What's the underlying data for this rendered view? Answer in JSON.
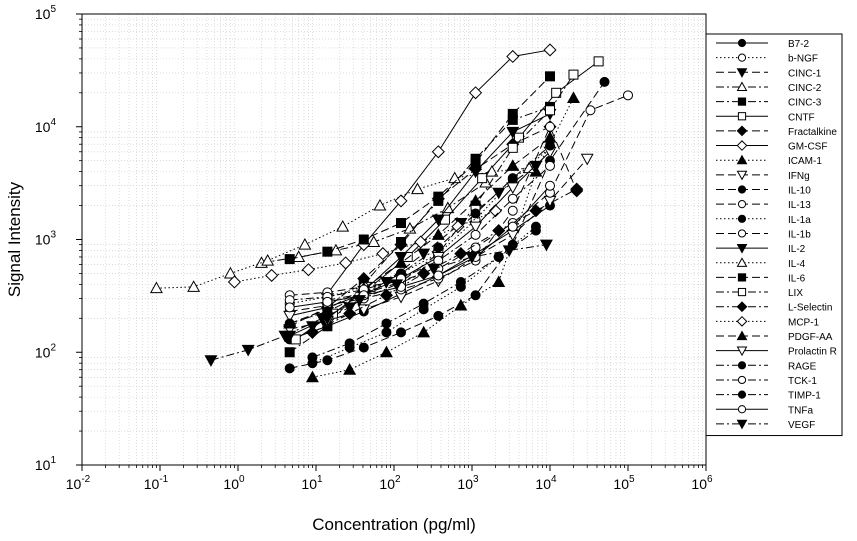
{
  "chart_data": {
    "type": "scatter",
    "title": "",
    "xlabel": "Concentration (pg/ml)",
    "ylabel": "Signal Intensity",
    "x_scale": "log",
    "y_scale": "log",
    "xlim": [
      0.01,
      1000000
    ],
    "ylim": [
      10,
      100000
    ],
    "x_ticks": [
      {
        "base": "10",
        "exp": "-2"
      },
      {
        "base": "10",
        "exp": "-1"
      },
      {
        "base": "10",
        "exp": "0"
      },
      {
        "base": "10",
        "exp": "1"
      },
      {
        "base": "10",
        "exp": "2"
      },
      {
        "base": "10",
        "exp": "3"
      },
      {
        "base": "10",
        "exp": "4"
      },
      {
        "base": "10",
        "exp": "5"
      },
      {
        "base": "10",
        "exp": "6"
      }
    ],
    "y_ticks": [
      {
        "base": "10",
        "exp": "1"
      },
      {
        "base": "10",
        "exp": "2"
      },
      {
        "base": "10",
        "exp": "3"
      },
      {
        "base": "10",
        "exp": "4"
      },
      {
        "base": "10",
        "exp": "5"
      }
    ],
    "grid": true,
    "legend_position": "right",
    "series": [
      {
        "name": "B7-2",
        "marker": "circle",
        "fill": "black",
        "dash": "solid",
        "x": [
          4.6,
          14,
          41,
          123,
          370,
          1111,
          3333,
          10000
        ],
        "y": [
          130,
          170,
          230,
          330,
          480,
          750,
          1200,
          2000
        ]
      },
      {
        "name": "b-NGF",
        "marker": "circle",
        "fill": "white",
        "dash": "dot",
        "x": [
          4.6,
          14,
          41,
          123,
          370,
          1111,
          3333,
          10000
        ],
        "y": [
          270,
          310,
          380,
          500,
          750,
          1500,
          3400,
          6500
        ]
      },
      {
        "name": "CINC-1",
        "marker": "triangle-down",
        "fill": "black",
        "dash": "longdash",
        "x": [
          9,
          27,
          80,
          240,
          720,
          2200,
          6600
        ],
        "y": [
          170,
          250,
          420,
          750,
          1400,
          2600,
          4500
        ]
      },
      {
        "name": "CINC-2",
        "marker": "triangle-up",
        "fill": "white",
        "dash": "dashdot",
        "x": [
          2,
          6,
          18,
          55,
          160,
          490,
          1500
        ],
        "y": [
          620,
          700,
          800,
          950,
          1250,
          1900,
          3200
        ]
      },
      {
        "name": "CINC-3",
        "marker": "square",
        "fill": "black",
        "dash": "dashdot",
        "x": [
          4.6,
          14,
          41,
          123,
          370,
          1111,
          3333,
          10000
        ],
        "y": [
          100,
          170,
          400,
          950,
          2200,
          5200,
          11500,
          15000
        ]
      },
      {
        "name": "CNTF",
        "marker": "square",
        "fill": "white",
        "dash": "solid",
        "x": [
          5.5,
          16.5,
          50,
          150,
          450,
          1350,
          4000,
          12000,
          42000
        ],
        "y": [
          130,
          220,
          380,
          700,
          1500,
          3500,
          8000,
          20000,
          38000
        ]
      },
      {
        "name": "Fractalkine",
        "marker": "diamond",
        "fill": "black",
        "dash": "longdash",
        "x": [
          4.6,
          14,
          41,
          123,
          370,
          1111,
          3333,
          10000,
          22000
        ],
        "y": [
          170,
          250,
          450,
          900,
          2300,
          4200,
          7000,
          10000,
          2700
        ]
      },
      {
        "name": "GM-CSF",
        "marker": "diamond",
        "fill": "white",
        "dash": "solid",
        "x": [
          14,
          41,
          123,
          370,
          1111,
          3333,
          10000
        ],
        "y": [
          330,
          900,
          2200,
          6000,
          20000,
          42000,
          48000
        ]
      },
      {
        "name": "ICAM-1",
        "marker": "triangle-up",
        "fill": "black",
        "dash": "dot",
        "x": [
          9,
          27,
          80,
          240,
          720,
          2200,
          6600,
          20000
        ],
        "y": [
          60,
          70,
          100,
          150,
          260,
          420,
          4000,
          18000
        ]
      },
      {
        "name": "IFNg",
        "marker": "triangle-down",
        "fill": "white",
        "dash": "longdash",
        "x": [
          4.6,
          14,
          41,
          123,
          370,
          1111,
          3333,
          10000,
          30000
        ],
        "y": [
          160,
          190,
          240,
          310,
          430,
          700,
          1100,
          2200,
          5200
        ]
      },
      {
        "name": "IL-10",
        "marker": "circle",
        "fill": "black",
        "dash": "longdash",
        "x": [
          4.6,
          14,
          41,
          123,
          370,
          1111,
          3333,
          10000,
          50000
        ],
        "y": [
          72,
          85,
          110,
          150,
          210,
          320,
          900,
          5000,
          25000
        ]
      },
      {
        "name": "IL-13",
        "marker": "circle",
        "fill": "white",
        "dash": "longdash",
        "x": [
          4.6,
          14,
          41,
          123,
          370,
          1111,
          3333,
          10000,
          33000,
          100000
        ],
        "y": [
          320,
          340,
          380,
          430,
          550,
          850,
          1400,
          2600,
          14000,
          19000
        ]
      },
      {
        "name": "IL-1a",
        "marker": "circle",
        "fill": "black",
        "dash": "dot",
        "x": [
          9,
          27,
          80,
          240,
          720,
          2200,
          6600
        ],
        "y": [
          80,
          110,
          150,
          240,
          380,
          700,
          1300
        ]
      },
      {
        "name": "IL-1b",
        "marker": "circle",
        "fill": "white",
        "dash": "longdash",
        "x": [
          4.6,
          14,
          41,
          123,
          370,
          1111,
          3333,
          10000
        ],
        "y": [
          230,
          260,
          300,
          360,
          450,
          650,
          1800,
          10000
        ]
      },
      {
        "name": "IL-2",
        "marker": "triangle-down",
        "fill": "black",
        "dash": "solid",
        "x": [
          4.6,
          14,
          41,
          123,
          370,
          1111,
          3333,
          10000
        ],
        "y": [
          140,
          200,
          350,
          700,
          1500,
          4000,
          9000,
          13000
        ]
      },
      {
        "name": "IL-4",
        "marker": "triangle-up",
        "fill": "white",
        "dash": "dot",
        "x": [
          0.09,
          0.27,
          0.8,
          2.4,
          7.2,
          22,
          66,
          200,
          600,
          1800,
          5400
        ],
        "y": [
          370,
          380,
          500,
          650,
          900,
          1300,
          2000,
          2800,
          3500,
          4000,
          4300
        ]
      },
      {
        "name": "IL-6",
        "marker": "square",
        "fill": "black",
        "dash": "longdash",
        "x": [
          4.6,
          14,
          41,
          123,
          370,
          1111,
          3333,
          10000
        ],
        "y": [
          670,
          780,
          1000,
          1400,
          2400,
          4800,
          13000,
          28000
        ]
      },
      {
        "name": "LIX",
        "marker": "square",
        "fill": "white",
        "dash": "dashdot",
        "x": [
          14,
          41,
          123,
          370,
          1111,
          3333,
          10000,
          20000
        ],
        "y": [
          290,
          330,
          420,
          750,
          2000,
          6500,
          14000,
          29000
        ]
      },
      {
        "name": "L-Selectin",
        "marker": "diamond",
        "fill": "black",
        "dash": "dashdot",
        "x": [
          9,
          27,
          80,
          240,
          720,
          2200,
          6600,
          22000
        ],
        "y": [
          150,
          220,
          320,
          500,
          750,
          1200,
          1800,
          2800
        ]
      },
      {
        "name": "MCP-1",
        "marker": "diamond",
        "fill": "white",
        "dash": "dot",
        "x": [
          0.9,
          2.7,
          8,
          24,
          72,
          220,
          660,
          2000
        ],
        "y": [
          420,
          480,
          540,
          620,
          750,
          950,
          1300,
          1800
        ]
      },
      {
        "name": "PDGF-AA",
        "marker": "triangle-up",
        "fill": "black",
        "dash": "longdash",
        "x": [
          4.6,
          14,
          41,
          123,
          370,
          1111,
          3333,
          10000
        ],
        "y": [
          180,
          240,
          370,
          620,
          1100,
          2200,
          4500,
          8000
        ]
      },
      {
        "name": "Prolactin R",
        "marker": "triangle-down",
        "fill": "white",
        "dash": "solid",
        "x": [
          4.6,
          14,
          41,
          123,
          370,
          1111,
          3333,
          10000
        ],
        "y": [
          210,
          250,
          330,
          450,
          700,
          1300,
          2900,
          6000
        ]
      },
      {
        "name": "RAGE",
        "marker": "circle",
        "fill": "black",
        "dash": "dashdot",
        "x": [
          4.6,
          14,
          41,
          123,
          370,
          1111,
          3333,
          10000
        ],
        "y": [
          180,
          230,
          330,
          500,
          850,
          1700,
          3500,
          6800
        ]
      },
      {
        "name": "TCK-1",
        "marker": "circle",
        "fill": "white",
        "dash": "dashdot",
        "x": [
          4.6,
          14,
          41,
          123,
          370,
          1111,
          3333,
          10000
        ],
        "y": [
          290,
          310,
          360,
          450,
          650,
          1100,
          2300,
          4500
        ]
      },
      {
        "name": "TIMP-1",
        "marker": "circle",
        "fill": "black",
        "dash": "dashdot",
        "x": [
          9,
          27,
          80,
          240,
          720,
          2200,
          6600
        ],
        "y": [
          90,
          120,
          180,
          270,
          420,
          700,
          1200
        ]
      },
      {
        "name": "TNFa",
        "marker": "circle",
        "fill": "white",
        "dash": "solid",
        "x": [
          4.6,
          14,
          41,
          123,
          370,
          1111,
          3333,
          10000
        ],
        "y": [
          250,
          280,
          320,
          380,
          480,
          700,
          1300,
          3000
        ]
      },
      {
        "name": "VEGF",
        "marker": "triangle-down",
        "fill": "black",
        "dash": "dashdot",
        "x": [
          0.45,
          1.35,
          4,
          12,
          36,
          108,
          324,
          1000,
          3000,
          9000
        ],
        "y": [
          85,
          105,
          140,
          200,
          290,
          400,
          550,
          700,
          800,
          900
        ]
      }
    ]
  }
}
